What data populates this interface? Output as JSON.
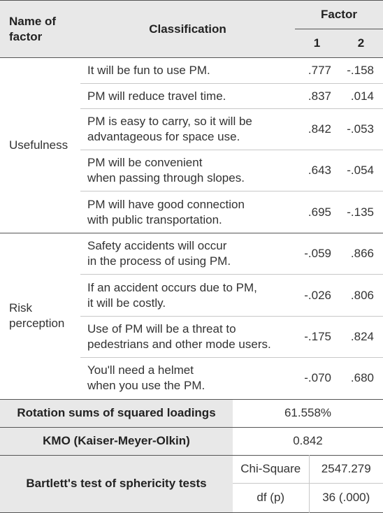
{
  "header": {
    "name": [
      "Name of",
      "factor"
    ],
    "classification": "Classification",
    "factor": "Factor",
    "factor_cols": [
      "1",
      "2"
    ]
  },
  "groups": [
    {
      "name": [
        "Usefulness"
      ],
      "rows": [
        {
          "classification": [
            "It will be fun to use PM."
          ],
          "f1": ".777",
          "f2": "-.158"
        },
        {
          "classification": [
            "PM will reduce travel time."
          ],
          "f1": ".837",
          "f2": ".014"
        },
        {
          "classification": [
            "PM is easy to carry, so it will be",
            "advantageous for space use."
          ],
          "f1": ".842",
          "f2": "-.053"
        },
        {
          "classification": [
            "PM will be convenient",
            "when passing through slopes."
          ],
          "f1": ".643",
          "f2": "-.054"
        },
        {
          "classification": [
            "PM will have good connection",
            "with public transportation."
          ],
          "f1": ".695",
          "f2": "-.135"
        }
      ]
    },
    {
      "name": [
        "Risk",
        "perception"
      ],
      "rows": [
        {
          "classification": [
            "Safety accidents will occur",
            "in the process of using PM."
          ],
          "f1": "-.059",
          "f2": ".866"
        },
        {
          "classification": [
            "If an accident occurs due to PM,",
            "it will be costly."
          ],
          "f1": "-.026",
          "f2": ".806"
        },
        {
          "classification": [
            "Use of PM will be a threat to",
            "pedestrians and other mode users."
          ],
          "f1": "-.175",
          "f2": ".824"
        },
        {
          "classification": [
            "You'll need a helmet",
            "when you use the PM."
          ],
          "f1": "-.070",
          "f2": ".680"
        }
      ]
    }
  ],
  "footer": {
    "rotation": {
      "label": "Rotation sums of squared loadings",
      "value": "61.558%"
    },
    "kmo": {
      "label": "KMO (Kaiser-Meyer-Olkin)",
      "value": "0.842"
    },
    "bartlett": {
      "label": "Bartlett's test of sphericity tests",
      "rows": [
        [
          "Chi-Square",
          "2547.279"
        ],
        [
          "df (p)",
          "36 (.000)"
        ]
      ]
    }
  }
}
